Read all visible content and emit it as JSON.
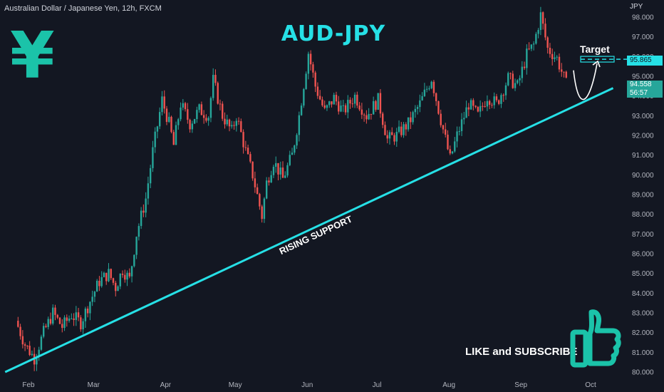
{
  "header": {
    "symbol": "Australian Dollar / Japanese Yen, 12h, FXCM",
    "currency": "JPY",
    "title": "AUD-JPY"
  },
  "icons": {
    "yen": "yen-sign-icon",
    "thumbs_up": "thumbs-up-icon"
  },
  "annotations": {
    "support": "RISING SUPPORT",
    "target": "Target",
    "cta": "LIKE and SUBSCRIBE"
  },
  "price_tags": {
    "target": "95.865",
    "last": "94.558",
    "countdown": "56:57"
  },
  "colors": {
    "background": "#131722",
    "bull": "#26a69a",
    "bear": "#ef5350",
    "accent": "#26e0e6",
    "yen": "#1bc3a9"
  },
  "chart_data": {
    "type": "candlestick",
    "title": "AUD-JPY",
    "x_ticks": [
      "Feb",
      "Mar",
      "Apr",
      "May",
      "Jun",
      "Jul",
      "Aug",
      "Sep",
      "Oct"
    ],
    "y_ticks": [
      "98.000",
      "97.000",
      "96.000",
      "95.000",
      "94.000",
      "93.000",
      "92.000",
      "91.000",
      "90.000",
      "89.000",
      "88.000",
      "87.000",
      "86.000",
      "85.000",
      "84.000",
      "83.000",
      "82.000",
      "81.000",
      "80.000"
    ],
    "ylim": [
      80.0,
      98.0
    ],
    "close_path": [
      [
        "Jan 27",
        82.6
      ],
      [
        "Jan 31",
        81.4
      ],
      [
        "Feb 4",
        80.7
      ],
      [
        "Feb 8",
        82.0
      ],
      [
        "Feb 12",
        83.0
      ],
      [
        "Feb 16",
        82.3
      ],
      [
        "Feb 20",
        82.9
      ],
      [
        "Feb 24",
        82.5
      ],
      [
        "Feb 28",
        83.6
      ],
      [
        "Mar 4",
        84.6
      ],
      [
        "Mar 8",
        85.0
      ],
      [
        "Mar 11",
        84.3
      ],
      [
        "Mar 14",
        85.2
      ],
      [
        "Mar 17",
        84.7
      ],
      [
        "Mar 20",
        87.0
      ],
      [
        "Mar 24",
        88.8
      ],
      [
        "Mar 27",
        91.2
      ],
      [
        "Mar 31",
        93.8
      ],
      [
        "Apr 3",
        92.6
      ],
      [
        "Apr 5",
        91.5
      ],
      [
        "Apr 8",
        93.6
      ],
      [
        "Apr 12",
        92.6
      ],
      [
        "Apr 16",
        93.3
      ],
      [
        "Apr 20",
        93.0
      ],
      [
        "Apr 22",
        94.8
      ],
      [
        "Apr 26",
        93.0
      ],
      [
        "Apr 30",
        92.2
      ],
      [
        "May 2",
        93.0
      ],
      [
        "May 6",
        91.2
      ],
      [
        "May 9",
        90.0
      ],
      [
        "May 13",
        87.9
      ],
      [
        "May 15",
        89.6
      ],
      [
        "May 18",
        90.7
      ],
      [
        "May 22",
        89.8
      ],
      [
        "May 26",
        91.0
      ],
      [
        "May 29",
        93.0
      ],
      [
        "Jun 2",
        96.2
      ],
      [
        "Jun 5",
        94.5
      ],
      [
        "Jun 9",
        93.2
      ],
      [
        "Jun 13",
        93.9
      ],
      [
        "Jun 17",
        93.2
      ],
      [
        "Jun 22",
        94.0
      ],
      [
        "Jun 27",
        93.0
      ],
      [
        "Jul 2",
        93.8
      ],
      [
        "Jul 6",
        91.8
      ],
      [
        "Jul 10",
        92.0
      ],
      [
        "Jul 15",
        92.6
      ],
      [
        "Jul 20",
        93.6
      ],
      [
        "Jul 25",
        94.9
      ],
      [
        "Jul 29",
        92.8
      ],
      [
        "Aug 2",
        90.8
      ],
      [
        "Aug 5",
        92.0
      ],
      [
        "Aug 10",
        93.6
      ],
      [
        "Aug 14",
        93.0
      ],
      [
        "Aug 18",
        94.0
      ],
      [
        "Aug 22",
        93.6
      ],
      [
        "Aug 27",
        94.9
      ],
      [
        "Aug 31",
        94.5
      ],
      [
        "Sep 4",
        96.1
      ],
      [
        "Sep 7",
        96.6
      ],
      [
        "Sep 10",
        98.1
      ],
      [
        "Sep 13",
        96.4
      ],
      [
        "Sep 17",
        95.9
      ],
      [
        "Sep 21",
        94.6
      ]
    ],
    "support_line": [
      [
        "Jan 29",
        80.0
      ],
      [
        "Oct 7",
        94.4
      ]
    ],
    "target_level": 95.865,
    "last_price": 94.558,
    "legend": "none",
    "grid": false
  }
}
